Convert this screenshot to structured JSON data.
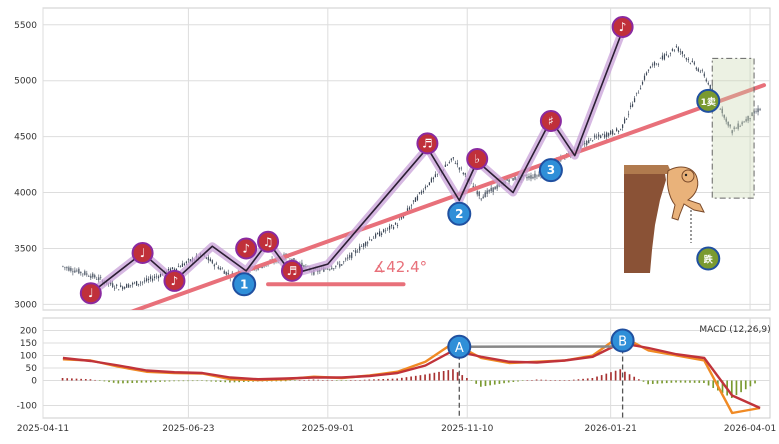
{
  "chart_data": [
    {
      "type": "candlestick",
      "xlim": [
        "2025-04-11",
        "2026-04-11"
      ],
      "x_ticks": [
        "2025-04-11",
        "2025-06-23",
        "2025-09-01",
        "2025-11-10",
        "2026-01-21",
        "2026-04-01"
      ],
      "ylim": [
        2950,
        5650
      ],
      "y_ticks": [
        3000,
        3500,
        4000,
        4500,
        5000,
        5500
      ],
      "grid": true,
      "price_series": {
        "x": [
          "2025-04-21",
          "2025-05-05",
          "2025-05-19",
          "2025-06-02",
          "2025-06-16",
          "2025-06-30",
          "2025-07-14",
          "2025-07-28",
          "2025-08-11",
          "2025-08-25",
          "2025-09-08",
          "2025-09-22",
          "2025-10-06",
          "2025-10-20",
          "2025-11-03",
          "2025-11-17",
          "2025-12-01",
          "2025-12-15",
          "2025-12-29",
          "2026-01-12",
          "2026-01-26",
          "2026-02-09",
          "2026-02-23",
          "2026-03-09",
          "2026-03-23",
          "2026-04-06"
        ],
        "y": [
          3340,
          3260,
          3150,
          3210,
          3320,
          3440,
          3260,
          3330,
          3430,
          3290,
          3360,
          3580,
          3720,
          4050,
          4300,
          3960,
          4120,
          4150,
          4320,
          4480,
          4560,
          5100,
          5300,
          5050,
          4550,
          4750
        ]
      },
      "trend_line": {
        "x": [
          "2025-05-20",
          "2026-04-08"
        ],
        "y": [
          2900,
          4960
        ]
      },
      "wave_path": {
        "x": [
          "2025-05-05",
          "2025-05-31",
          "2025-06-16",
          "2025-07-05",
          "2025-07-22",
          "2025-08-02",
          "2025-08-14",
          "2025-09-01",
          "2025-10-21",
          "2025-11-06",
          "2025-11-15",
          "2025-12-03",
          "2025-12-22",
          "2026-01-03",
          "2026-01-27"
        ],
        "y": [
          3100,
          3460,
          3210,
          3520,
          3300,
          3560,
          3270,
          3360,
          4400,
          3930,
          4280,
          4000,
          4650,
          4330,
          5450
        ]
      },
      "angle_annotation": {
        "label": "∡42.4°",
        "x": [
          "2025-08-02",
          "2025-10-09"
        ],
        "y": 3180
      },
      "markers": [
        {
          "symbol": "♩",
          "style": "note",
          "x": "2025-05-05",
          "y": 3100
        },
        {
          "symbol": "♩",
          "style": "note",
          "x": "2025-05-31",
          "y": 3460
        },
        {
          "symbol": "♪",
          "style": "note",
          "x": "2025-06-16",
          "y": 3210
        },
        {
          "symbol": "♪",
          "style": "note",
          "x": "2025-07-22",
          "y": 3500
        },
        {
          "symbol": "♫",
          "style": "note",
          "x": "2025-08-02",
          "y": 3560
        },
        {
          "symbol": "♬",
          "style": "note",
          "x": "2025-08-14",
          "y": 3300
        },
        {
          "symbol": "♬",
          "style": "note",
          "x": "2025-10-21",
          "y": 4440
        },
        {
          "symbol": "♭",
          "style": "note",
          "x": "2025-11-15",
          "y": 4300
        },
        {
          "symbol": "♯",
          "style": "note",
          "x": "2025-12-22",
          "y": 4640
        },
        {
          "symbol": "♪",
          "style": "note",
          "x": "2026-01-27",
          "y": 5480
        },
        {
          "symbol": "1",
          "style": "count",
          "x": "2025-07-21",
          "y": 3180
        },
        {
          "symbol": "2",
          "style": "count",
          "x": "2025-11-06",
          "y": 3810
        },
        {
          "symbol": "3",
          "style": "count",
          "x": "2025-12-22",
          "y": 4200
        },
        {
          "symbol": "1卖",
          "style": "sell",
          "x": "2026-03-11",
          "y": 4820
        },
        {
          "symbol": "跌",
          "style": "sell",
          "x": "2026-03-11",
          "y": 3410
        }
      ],
      "highlight_box": {
        "x": [
          "2026-03-13",
          "2026-04-03"
        ],
        "y": [
          3950,
          5200
        ]
      }
    },
    {
      "type": "line",
      "legend": "MACD (12,26,9)",
      "legend_position": "top-right",
      "ylim": [
        -150,
        250
      ],
      "y_ticks": [
        -100,
        0,
        50,
        100,
        150,
        200
      ],
      "grid": true,
      "x": [
        "2025-04-21",
        "2025-05-05",
        "2025-05-19",
        "2025-06-02",
        "2025-06-16",
        "2025-06-30",
        "2025-07-14",
        "2025-07-28",
        "2025-08-11",
        "2025-08-25",
        "2025-09-08",
        "2025-09-22",
        "2025-10-06",
        "2025-10-20",
        "2025-11-03",
        "2025-11-17",
        "2025-12-01",
        "2025-12-15",
        "2025-12-29",
        "2026-01-12",
        "2026-01-26",
        "2026-02-09",
        "2026-02-23",
        "2026-03-09",
        "2026-03-23",
        "2026-04-06"
      ],
      "series": [
        {
          "color": "#f08a24",
          "values": [
            85,
            80,
            55,
            35,
            30,
            28,
            5,
            2,
            5,
            15,
            10,
            20,
            35,
            75,
            150,
            90,
            70,
            75,
            80,
            100,
            180,
            120,
            100,
            80,
            -130,
            -110
          ]
        },
        {
          "color": "#c0333a",
          "values": [
            90,
            78,
            60,
            40,
            33,
            30,
            12,
            5,
            8,
            12,
            12,
            18,
            30,
            60,
            120,
            95,
            75,
            72,
            80,
            95,
            150,
            130,
            105,
            90,
            -60,
            -110
          ]
        }
      ],
      "histogram": {
        "values": [
          10,
          5,
          -12,
          -8,
          -3,
          -2,
          -8,
          -4,
          -3,
          4,
          -2,
          4,
          8,
          24,
          45,
          -25,
          -8,
          4,
          0,
          10,
          45,
          -15,
          -8,
          -10,
          -70,
          0
        ]
      },
      "signal_markers": [
        {
          "label": "A",
          "x": "2025-11-06",
          "y": 135
        },
        {
          "label": "B",
          "x": "2026-01-27",
          "y": 160
        }
      ]
    }
  ]
}
